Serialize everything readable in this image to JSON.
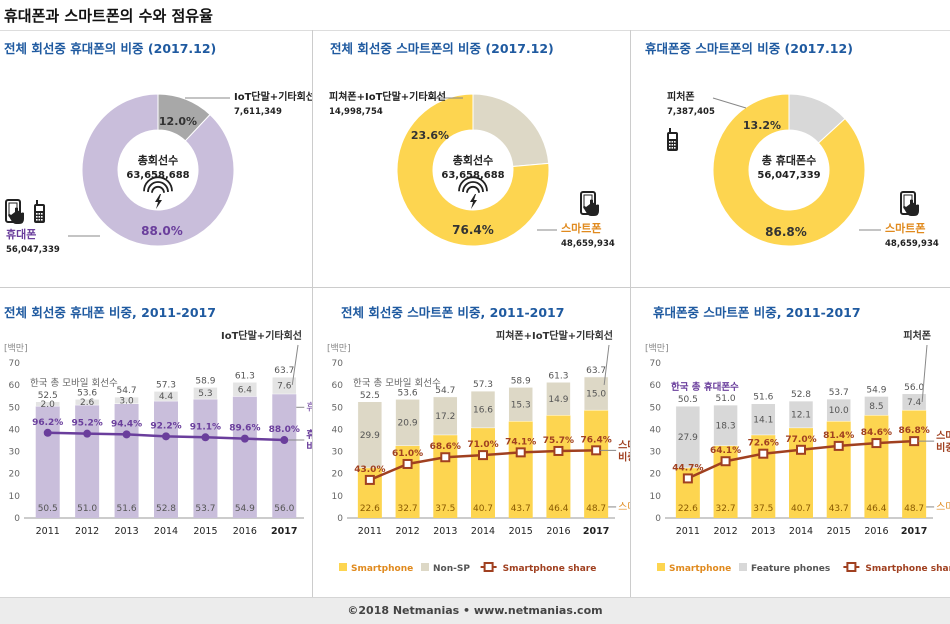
{
  "page_title": "휴대폰과 스마트폰의 수와 점유율",
  "footer": "©2018 Netmanias • www.netmanias.com",
  "colors": {
    "purple": "#c9bedb",
    "purple_dark": "#6a3e9c",
    "yellow": "#fdd550",
    "beige": "#ddd8c6",
    "gray": "#a8a8a8",
    "lightgray": "#d8d8d8",
    "brown": "#a04020",
    "orange": "#e08a1e",
    "title_blue": "#1f5aa0"
  },
  "donuts": [
    {
      "title": "전체 회선중 휴대폰의 비중 (2017.12)",
      "center_label": "총회선수",
      "center_value": "63,658,688",
      "center_icon": "wireless-icon",
      "segments": [
        {
          "label": "휴대폰",
          "value": "56,047,339",
          "pct": 88.0,
          "pct_label": "88.0%",
          "color": "#c9bedb",
          "label_color": "#6a3e9c"
        },
        {
          "label": "IoT단말+기타회선",
          "value": "7,611,349",
          "pct": 12.0,
          "pct_label": "12.0%",
          "color": "#a8a8a8",
          "label_color": "#222"
        }
      ]
    },
    {
      "title": "전체 회선중 스마트폰의 비중 (2017.12)",
      "center_label": "총회선수",
      "center_value": "63,658,688",
      "center_icon": "wireless-icon",
      "segments": [
        {
          "label": "스마트폰",
          "value": "48,659,934",
          "pct": 76.4,
          "pct_label": "76.4%",
          "color": "#fdd550",
          "label_color": "#e08a1e"
        },
        {
          "label": "피쳐폰+IoT단말+기타회선",
          "value": "14,998,754",
          "pct": 23.6,
          "pct_label": "23.6%",
          "color": "#ddd8c6",
          "label_color": "#222"
        }
      ]
    },
    {
      "title": "휴대폰중 스마트폰의 비중 (2017.12)",
      "center_label": "총 휴대폰수",
      "center_value": "56,047,339",
      "center_icon": "",
      "segments": [
        {
          "label": "스마트폰",
          "value": "48,659,934",
          "pct": 86.8,
          "pct_label": "86.8%",
          "color": "#fdd550",
          "label_color": "#e08a1e"
        },
        {
          "label": "피처폰",
          "value": "7,387,405",
          "pct": 13.2,
          "pct_label": "13.2%",
          "color": "#d8d8d8",
          "label_color": "#222"
        }
      ]
    }
  ],
  "chart_data": [
    {
      "type": "bar",
      "title": "전체 회선중 휴대폰 비중, 2011-2017",
      "ylabel": "[백만]",
      "ylim": [
        0,
        70
      ],
      "yticks": [
        0,
        10,
        20,
        30,
        40,
        50,
        60,
        70
      ],
      "categories": [
        "2011",
        "2012",
        "2013",
        "2014",
        "2015",
        "2016",
        "2017"
      ],
      "bold_category": "2017",
      "stacked": true,
      "series": [
        {
          "name": "휴대폰",
          "values": [
            50.5,
            51.0,
            51.6,
            52.8,
            53.7,
            54.9,
            56.0
          ],
          "color": "#c9bedb"
        },
        {
          "name": "IoT단말+기타회선",
          "values": [
            2.0,
            2.6,
            3.0,
            4.4,
            5.3,
            6.4,
            7.6
          ],
          "color": "#e4e4e4"
        }
      ],
      "totals": [
        52.5,
        53.6,
        54.7,
        57.3,
        58.9,
        61.3,
        63.7
      ],
      "total_line_label": "한국 총 모바일 회선수",
      "share_series": {
        "name": "휴대폰 비중",
        "values": [
          96.2,
          95.2,
          94.4,
          92.2,
          91.1,
          89.6,
          88.0
        ],
        "labels": [
          "96.2%",
          "95.2%",
          "94.4%",
          "92.2%",
          "91.1%",
          "89.6%",
          "88.0%"
        ],
        "color": "#6a3e9c"
      },
      "annotations": {
        "top": "IoT단말+기타회선",
        "series": "휴대폰",
        "share": [
          "휴대폰",
          "비중"
        ]
      },
      "legend": []
    },
    {
      "type": "bar",
      "title": "전체 회선중 스마트폰 비중, 2011-2017",
      "ylabel": "[백만]",
      "ylim": [
        0,
        70
      ],
      "yticks": [
        0,
        10,
        20,
        30,
        40,
        50,
        60,
        70
      ],
      "categories": [
        "2011",
        "2012",
        "2013",
        "2014",
        "2015",
        "2016",
        "2017"
      ],
      "bold_category": "2017",
      "stacked": true,
      "series": [
        {
          "name": "Smartphone",
          "values": [
            22.6,
            32.7,
            37.5,
            40.7,
            43.7,
            46.4,
            48.7
          ],
          "color": "#fdd550"
        },
        {
          "name": "Non-SP",
          "values": [
            29.9,
            20.9,
            17.2,
            16.6,
            15.3,
            14.9,
            15.0
          ],
          "color": "#ddd8c6"
        }
      ],
      "totals": [
        52.5,
        53.6,
        54.7,
        57.3,
        58.9,
        61.3,
        63.7
      ],
      "total_line_label": "한국 총 모바일 회선수",
      "share_series": {
        "name": "Smartphone share",
        "values": [
          43.0,
          61.0,
          68.6,
          71.0,
          74.1,
          75.7,
          76.4
        ],
        "labels": [
          "43.0%",
          "61.0%",
          "68.6%",
          "71.0%",
          "74.1%",
          "75.7%",
          "76.4%"
        ],
        "color": "#a04020"
      },
      "annotations": {
        "top": "피쳐폰+IoT단말+기타회선",
        "series": "스마트폰",
        "share": [
          "스마트폰",
          "비중"
        ]
      },
      "legend": [
        "Smartphone",
        "Non-SP",
        "Smartphone share"
      ]
    },
    {
      "type": "bar",
      "title": "휴대폰중 스마트폰 비중, 2011-2017",
      "ylabel": "[백만]",
      "ylim": [
        0,
        70
      ],
      "yticks": [
        0,
        10,
        20,
        30,
        40,
        50,
        60,
        70
      ],
      "categories": [
        "2011",
        "2012",
        "2013",
        "2014",
        "2015",
        "2016",
        "2017"
      ],
      "bold_category": "2017",
      "stacked": true,
      "series": [
        {
          "name": "Smartphone",
          "values": [
            22.6,
            32.7,
            37.5,
            40.7,
            43.7,
            46.4,
            48.7
          ],
          "color": "#fdd550"
        },
        {
          "name": "Feature phones",
          "values": [
            27.9,
            18.3,
            14.1,
            12.1,
            10.0,
            8.5,
            7.4
          ],
          "color": "#d8d8d8"
        }
      ],
      "totals": [
        50.5,
        51.0,
        51.6,
        52.8,
        53.7,
        54.9,
        56.0
      ],
      "total_line_label": "한국 총 휴대폰수",
      "share_series": {
        "name": "Smartphone share",
        "values": [
          44.7,
          64.1,
          72.6,
          77.0,
          81.4,
          84.6,
          86.8
        ],
        "labels": [
          "44.7%",
          "64.1%",
          "72.6%",
          "77.0%",
          "81.4%",
          "84.6%",
          "86.8%"
        ],
        "color": "#a04020"
      },
      "annotations": {
        "top": "피처폰",
        "series": "스마트폰",
        "share": [
          "스마트폰",
          "비중"
        ]
      },
      "legend": [
        "Smartphone",
        "Feature phones",
        "Smartphone share"
      ]
    }
  ]
}
